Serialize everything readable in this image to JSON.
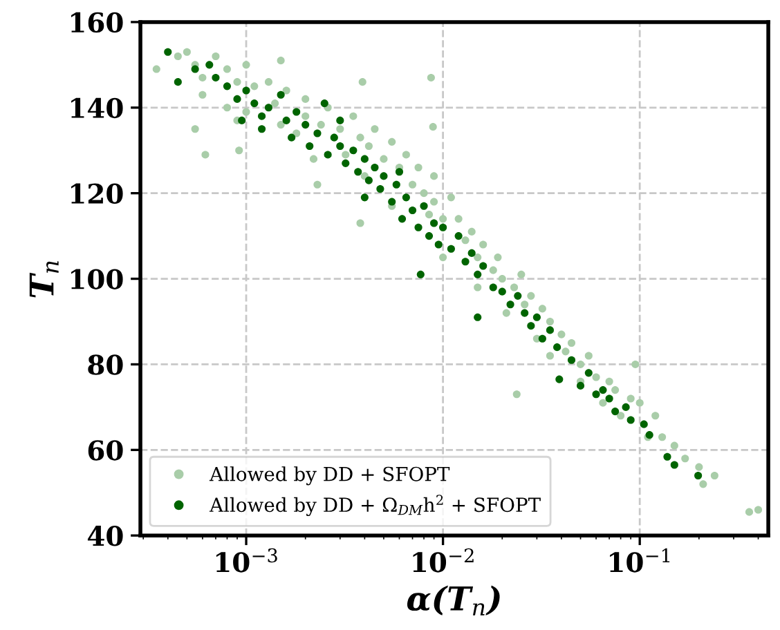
{
  "chart_data": {
    "type": "scatter",
    "xlabel": "α(T$_{n}$)",
    "ylabel": "T$_{n}$",
    "log": "x",
    "grid": true,
    "legend": "bottom left",
    "marker": "circle",
    "xlim": [
      0.00029,
      0.45
    ],
    "ylim": [
      40,
      160
    ],
    "xticks": [
      {
        "value": 0.001,
        "label": "10$^{−3}$"
      },
      {
        "value": 0.01,
        "label": "10$^{−2}$"
      },
      {
        "value": 0.1,
        "label": "10$^{−1}$"
      }
    ],
    "yticks": [
      40,
      60,
      80,
      100,
      120,
      140,
      160
    ],
    "series": [
      {
        "name": "Allowed by DD + SFOPT",
        "color": "#a9cda9",
        "x": [
          0.00035,
          0.00045,
          0.0005,
          0.00055,
          0.0006,
          0.0006,
          0.00055,
          0.00062,
          0.0007,
          0.0008,
          0.0008,
          0.0009,
          0.0009,
          0.001,
          0.001,
          0.0011,
          0.00092,
          0.0013,
          0.0014,
          0.0015,
          0.0016,
          0.0018,
          0.002,
          0.002,
          0.0022,
          0.0024,
          0.0026,
          0.0023,
          0.003,
          0.0032,
          0.0035,
          0.0038,
          0.004,
          0.0042,
          0.0045,
          0.0039,
          0.005,
          0.0055,
          0.0055,
          0.006,
          0.0065,
          0.007,
          0.0038,
          0.0075,
          0.008,
          0.0085,
          0.009,
          0.009,
          0.01,
          0.01,
          0.011,
          0.012,
          0.013,
          0.014,
          0.015,
          0.015,
          0.016,
          0.018,
          0.019,
          0.02,
          0.021,
          0.023,
          0.025,
          0.026,
          0.028,
          0.03,
          0.032,
          0.035,
          0.035,
          0.04,
          0.042,
          0.045,
          0.05,
          0.05,
          0.055,
          0.06,
          0.065,
          0.07,
          0.075,
          0.08,
          0.09,
          0.095,
          0.1,
          0.11,
          0.12,
          0.13,
          0.15,
          0.17,
          0.2,
          0.24,
          0.21,
          0.36,
          0.4,
          0.0237,
          0.0087,
          0.0089,
          0.0015
        ],
        "values": [
          149,
          152,
          153,
          150,
          147,
          143,
          135,
          129,
          152,
          149,
          140,
          146,
          137,
          150,
          139,
          145,
          130,
          146,
          141,
          136,
          144,
          134,
          142,
          138,
          128,
          136,
          140,
          122,
          135,
          129,
          138,
          133,
          124,
          131,
          135,
          146,
          128,
          132,
          117,
          126,
          129,
          122,
          113,
          126,
          120,
          115,
          124,
          118,
          114,
          105,
          119,
          114,
          109,
          111,
          105,
          98,
          108,
          102,
          105,
          100,
          92,
          98,
          101,
          94,
          96,
          86,
          93,
          90,
          82,
          87,
          83,
          85,
          80,
          76,
          82,
          77,
          71,
          76,
          74,
          68,
          72,
          80,
          71,
          63,
          68,
          63,
          61,
          58,
          56,
          54,
          52,
          45.5,
          46,
          73,
          147,
          135.5,
          151
        ]
      },
      {
        "name": "Allowed by DD + Ω$_{DM}$h$^{2}$ + SFOPT",
        "color": "#006400",
        "x": [
          0.0004,
          0.00045,
          0.00055,
          0.00065,
          0.0007,
          0.0008,
          0.0009,
          0.001,
          0.0011,
          0.0012,
          0.0013,
          0.0012,
          0.0015,
          0.0016,
          0.0017,
          0.0018,
          0.002,
          0.0021,
          0.0023,
          0.0025,
          0.0026,
          0.0028,
          0.003,
          0.0032,
          0.0035,
          0.0037,
          0.004,
          0.0042,
          0.0045,
          0.0048,
          0.005,
          0.0055,
          0.0058,
          0.0062,
          0.0065,
          0.007,
          0.0075,
          0.008,
          0.0085,
          0.009,
          0.0095,
          0.01,
          0.0077,
          0.011,
          0.012,
          0.013,
          0.014,
          0.015,
          0.016,
          0.018,
          0.015,
          0.02,
          0.022,
          0.024,
          0.026,
          0.028,
          0.03,
          0.032,
          0.035,
          0.038,
          0.039,
          0.045,
          0.05,
          0.055,
          0.06,
          0.065,
          0.07,
          0.075,
          0.085,
          0.09,
          0.105,
          0.112,
          0.138,
          0.15,
          0.198,
          0.004,
          0.006,
          0.003,
          0.00095
        ],
        "values": [
          153,
          146,
          149,
          150,
          147,
          145,
          142,
          144,
          141,
          138,
          140,
          135,
          143,
          137,
          133,
          139,
          136,
          131,
          134,
          141,
          129,
          133,
          131,
          127,
          130,
          125,
          128,
          123,
          126,
          121,
          124,
          118,
          122,
          114,
          119,
          116,
          112,
          117,
          110,
          113,
          108,
          112,
          101,
          107,
          110,
          104,
          106,
          101,
          103,
          98,
          91,
          97,
          94,
          96,
          92,
          89,
          91,
          86,
          88,
          84,
          76.5,
          81,
          75,
          78,
          73,
          74,
          72,
          69,
          70,
          67,
          66,
          63.5,
          58.4,
          56.5,
          54,
          119,
          125,
          137,
          137
        ]
      }
    ]
  }
}
